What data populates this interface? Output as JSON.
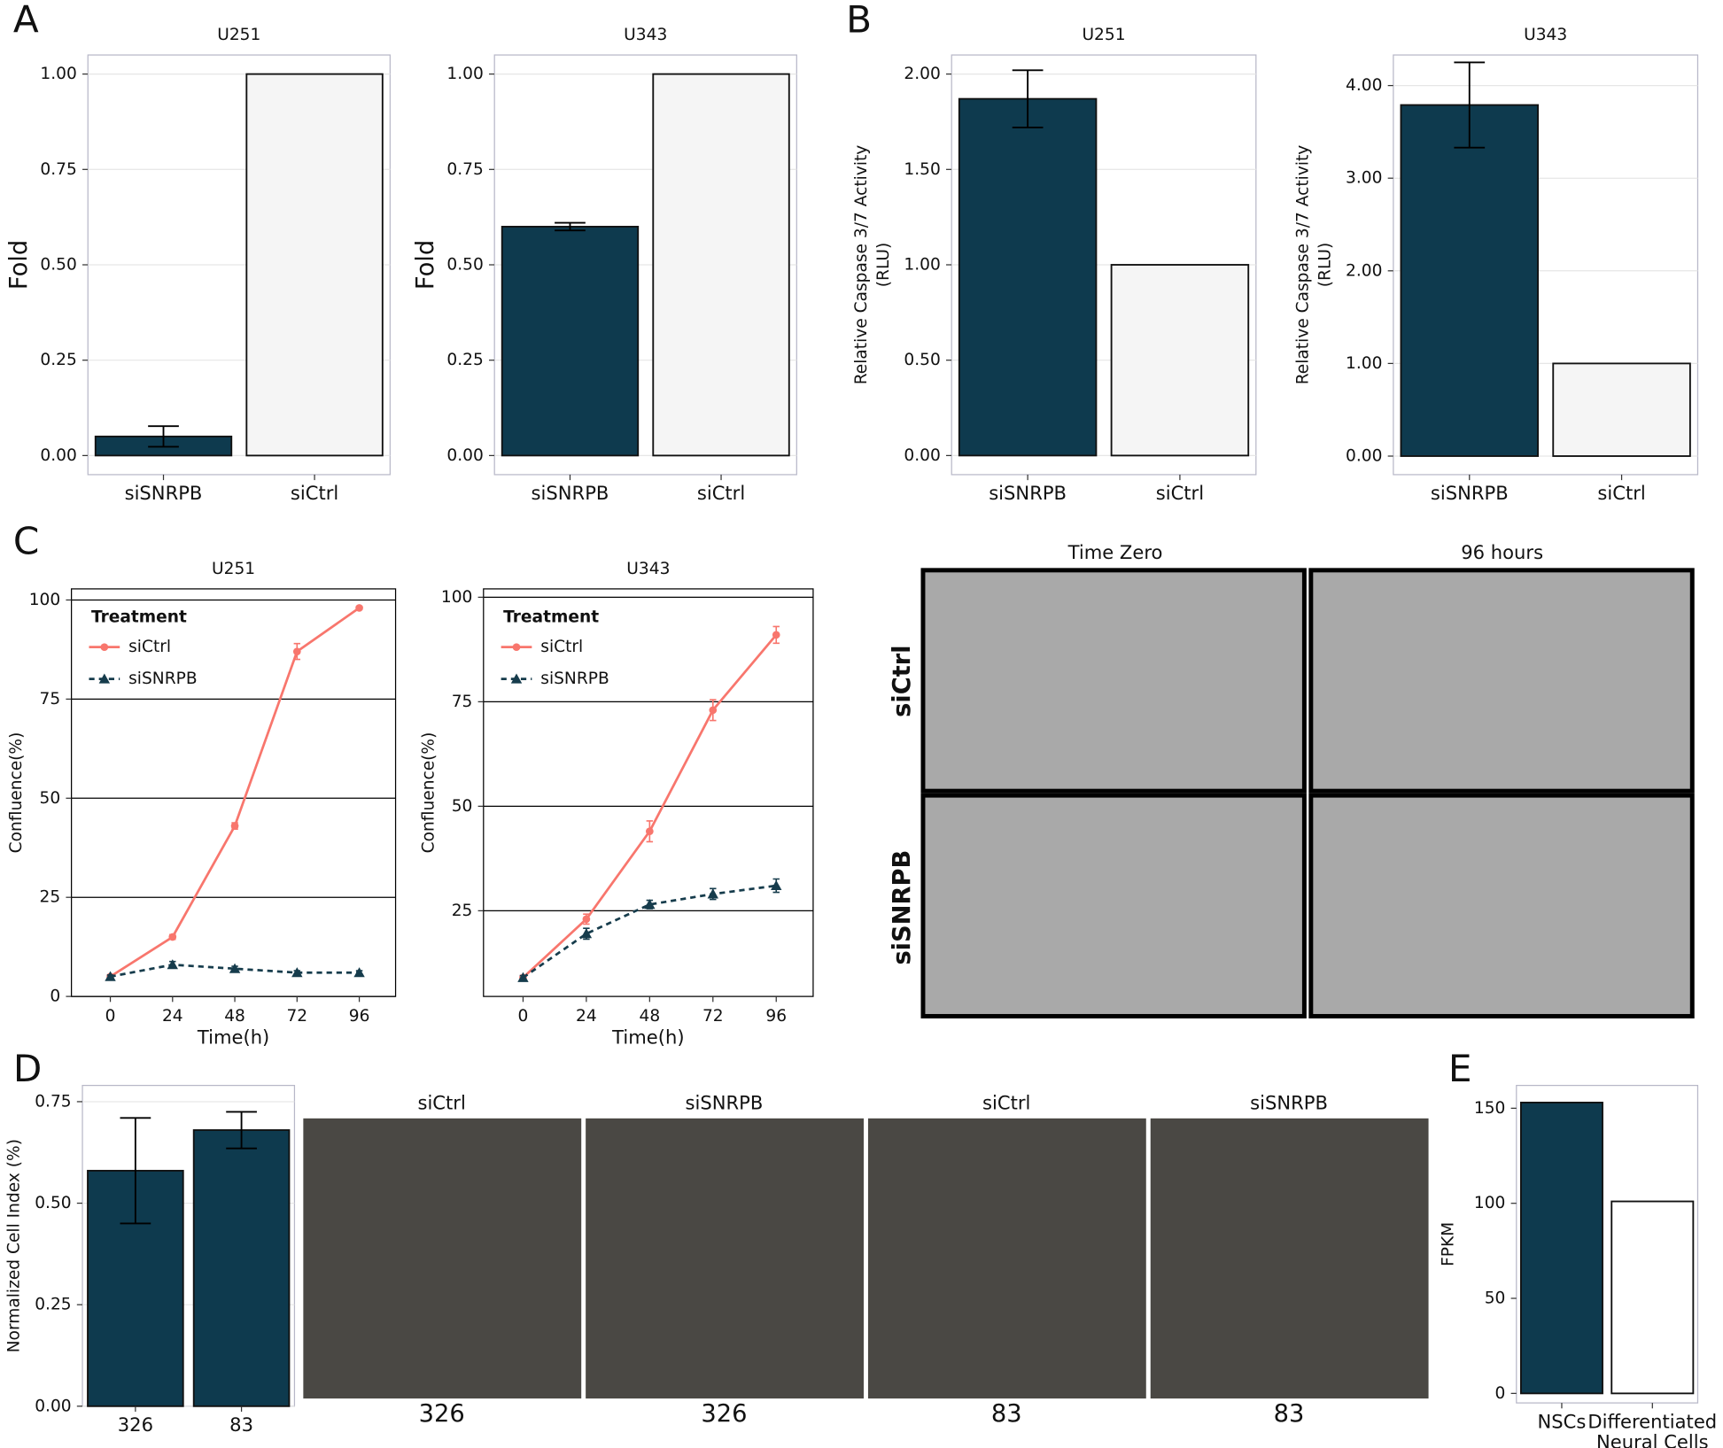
{
  "panels": [
    "A",
    "B",
    "C",
    "D",
    "E"
  ],
  "micrographs": {
    "C": {
      "columns": [
        "Time Zero",
        "96 hours"
      ],
      "rows": [
        "siCtrl",
        "siSNRPB"
      ]
    },
    "D": {
      "titles": [
        "siCtrl",
        "siSNRPB",
        "siCtrl",
        "siSNRPB"
      ],
      "labels": [
        "326",
        "326",
        "83",
        "83"
      ]
    }
  },
  "chart_data": [
    {
      "type": "bar",
      "title": "U251",
      "ylabel": "Fold",
      "categories": [
        "siSNRPB",
        "siCtrl"
      ],
      "values": [
        0.05,
        1.0
      ],
      "errors": [
        0.027,
        null
      ],
      "colors": [
        "#0e3a4e",
        "#f5f5f5"
      ],
      "ylim": [
        -0.05,
        1.05
      ],
      "yticks": [
        {
          "value": 0,
          "label": "0.00"
        },
        {
          "value": 0.25,
          "label": "0.25"
        },
        {
          "value": 0.5,
          "label": "0.50"
        },
        {
          "value": 0.75,
          "label": "0.75"
        },
        {
          "value": 1,
          "label": "1.00"
        }
      ],
      "grid": true
    },
    {
      "type": "bar",
      "title": "U343",
      "ylabel": "Fold",
      "categories": [
        "siSNRPB",
        "siCtrl"
      ],
      "values": [
        0.6,
        1.0
      ],
      "errors": [
        0.01,
        null
      ],
      "colors": [
        "#0e3a4e",
        "#f5f5f5"
      ],
      "ylim": [
        -0.05,
        1.05
      ],
      "yticks": [
        {
          "value": 0,
          "label": "0.00"
        },
        {
          "value": 0.25,
          "label": "0.25"
        },
        {
          "value": 0.5,
          "label": "0.50"
        },
        {
          "value": 0.75,
          "label": "0.75"
        },
        {
          "value": 1,
          "label": "1.00"
        }
      ],
      "grid": true
    },
    {
      "type": "bar",
      "title": "U251",
      "ylabel": [
        "Relative Caspase 3/7 Activity",
        "(RLU)"
      ],
      "categories": [
        "siSNRPB",
        "siCtrl"
      ],
      "values": [
        1.87,
        1.0
      ],
      "errors": [
        0.15,
        null
      ],
      "colors": [
        "#0e3a4e",
        "#f5f5f5"
      ],
      "ylim": [
        -0.1,
        2.1
      ],
      "yticks": [
        {
          "value": 0,
          "label": "0.00"
        },
        {
          "value": 0.5,
          "label": "0.50"
        },
        {
          "value": 1,
          "label": "1.00"
        },
        {
          "value": 1.5,
          "label": "1.50"
        },
        {
          "value": 2,
          "label": "2.00"
        }
      ],
      "grid": true
    },
    {
      "type": "bar",
      "title": "U343",
      "ylabel": [
        "Relative Caspase 3/7 Activity",
        "(RLU)"
      ],
      "categories": [
        "siSNRPB",
        "siCtrl"
      ],
      "values": [
        3.79,
        1.0
      ],
      "errors": [
        0.46,
        null
      ],
      "colors": [
        "#0e3a4e",
        "#f5f5f5"
      ],
      "ylim": [
        -0.2,
        4.33
      ],
      "yticks": [
        {
          "value": 0,
          "label": "0.00"
        },
        {
          "value": 1,
          "label": "1.00"
        },
        {
          "value": 2,
          "label": "2.00"
        },
        {
          "value": 3,
          "label": "3.00"
        },
        {
          "value": 4,
          "label": "4.00"
        }
      ],
      "grid": true
    },
    {
      "type": "line",
      "title": "U251",
      "xlabel": "Time(h)",
      "ylabel": "Confluence(%)",
      "legend_title": "Treatment",
      "x": [
        0,
        24,
        48,
        72,
        96
      ],
      "xlim": [
        -15,
        110
      ],
      "xticks": [
        0,
        24,
        48,
        72,
        96
      ],
      "ylim": [
        0,
        102.8
      ],
      "yticks": [
        0,
        25,
        50,
        75,
        100
      ],
      "grid": true,
      "series": [
        {
          "name": "siCtrl",
          "color": "#f8766d",
          "marker": "circle",
          "dash": false,
          "values": [
            5,
            15,
            43,
            87,
            98
          ],
          "errors": [
            0.4,
            0.6,
            0.8,
            2,
            0.4
          ]
        },
        {
          "name": "siSNRPB",
          "color": "#163c4c",
          "marker": "triangle",
          "dash": true,
          "values": [
            5,
            8,
            7,
            6,
            6
          ],
          "errors": [
            0.4,
            0.8,
            0.6,
            0.5,
            0.5
          ]
        }
      ]
    },
    {
      "type": "line",
      "title": "U343",
      "xlabel": "Time(h)",
      "ylabel": "Confluence(%)",
      "legend_title": "Treatment",
      "x": [
        0,
        24,
        48,
        72,
        96
      ],
      "xlim": [
        -15,
        110
      ],
      "xticks": [
        0,
        24,
        48,
        72,
        96
      ],
      "ylim": [
        4.5,
        102
      ],
      "yticks": [
        25,
        50,
        75,
        100
      ],
      "grid": true,
      "series": [
        {
          "name": "siCtrl",
          "color": "#f8766d",
          "marker": "circle",
          "dash": false,
          "values": [
            9,
            23,
            44,
            73,
            91
          ],
          "errors": [
            0.5,
            1.2,
            2.5,
            2.5,
            2
          ]
        },
        {
          "name": "siSNRPB",
          "color": "#163c4c",
          "marker": "triangle",
          "dash": true,
          "values": [
            9,
            19.5,
            26.5,
            29,
            31
          ],
          "errors": [
            0.5,
            1.3,
            1,
            1.3,
            1.6
          ]
        }
      ]
    },
    {
      "type": "bar",
      "ylabel": "Normalized Cell Index (%)",
      "categories": [
        "326",
        "83"
      ],
      "values": [
        0.58,
        0.68
      ],
      "errors": [
        0.13,
        0.045
      ],
      "colors": [
        "#0e3a4e",
        "#0e3a4e"
      ],
      "ylim": [
        0,
        0.79
      ],
      "yticks": [
        {
          "value": 0,
          "label": "0.00"
        },
        {
          "value": 0.25,
          "label": "0.25"
        },
        {
          "value": 0.5,
          "label": "0.50"
        },
        {
          "value": 0.75,
          "label": "0.75"
        }
      ],
      "grid": true
    },
    {
      "type": "bar",
      "ylabel": "FPKM",
      "categories": [
        "NSCs",
        "Differentiated\nNeural Cells"
      ],
      "values": [
        153,
        101
      ],
      "colors": [
        "#0e3a4e",
        "#ffffff"
      ],
      "ylim": [
        -5,
        162
      ],
      "yticks": [
        0,
        50,
        100,
        150
      ],
      "grid": false
    }
  ]
}
